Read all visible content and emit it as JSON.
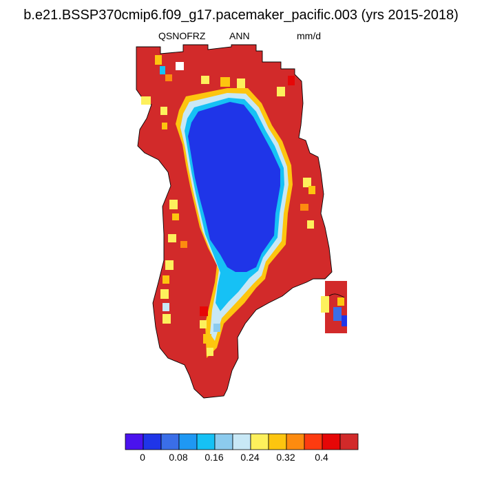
{
  "title": "b.e21.BSSP370cmip6.f09_g17.pacemaker_pacific.003 (yrs 2015-2018)",
  "variable": "QSNOFRZ",
  "period": "ANN",
  "units": "mm/d",
  "colors": {
    "interior": "#1f35e8",
    "margin": "#d22a2a",
    "coast_line": "#000000"
  },
  "colorbar": {
    "colors": [
      "#4a12ee",
      "#1f35e8",
      "#3a6ee8",
      "#1f98f3",
      "#16c1f5",
      "#8ccbee",
      "#c8e8f6",
      "#fdf05c",
      "#fdc50f",
      "#fd8b0f",
      "#fd3b10",
      "#e60707",
      "#d22a2a"
    ],
    "tick_labels": [
      "0",
      "0.08",
      "0.16",
      "0.24",
      "0.32",
      "0.4"
    ]
  }
}
